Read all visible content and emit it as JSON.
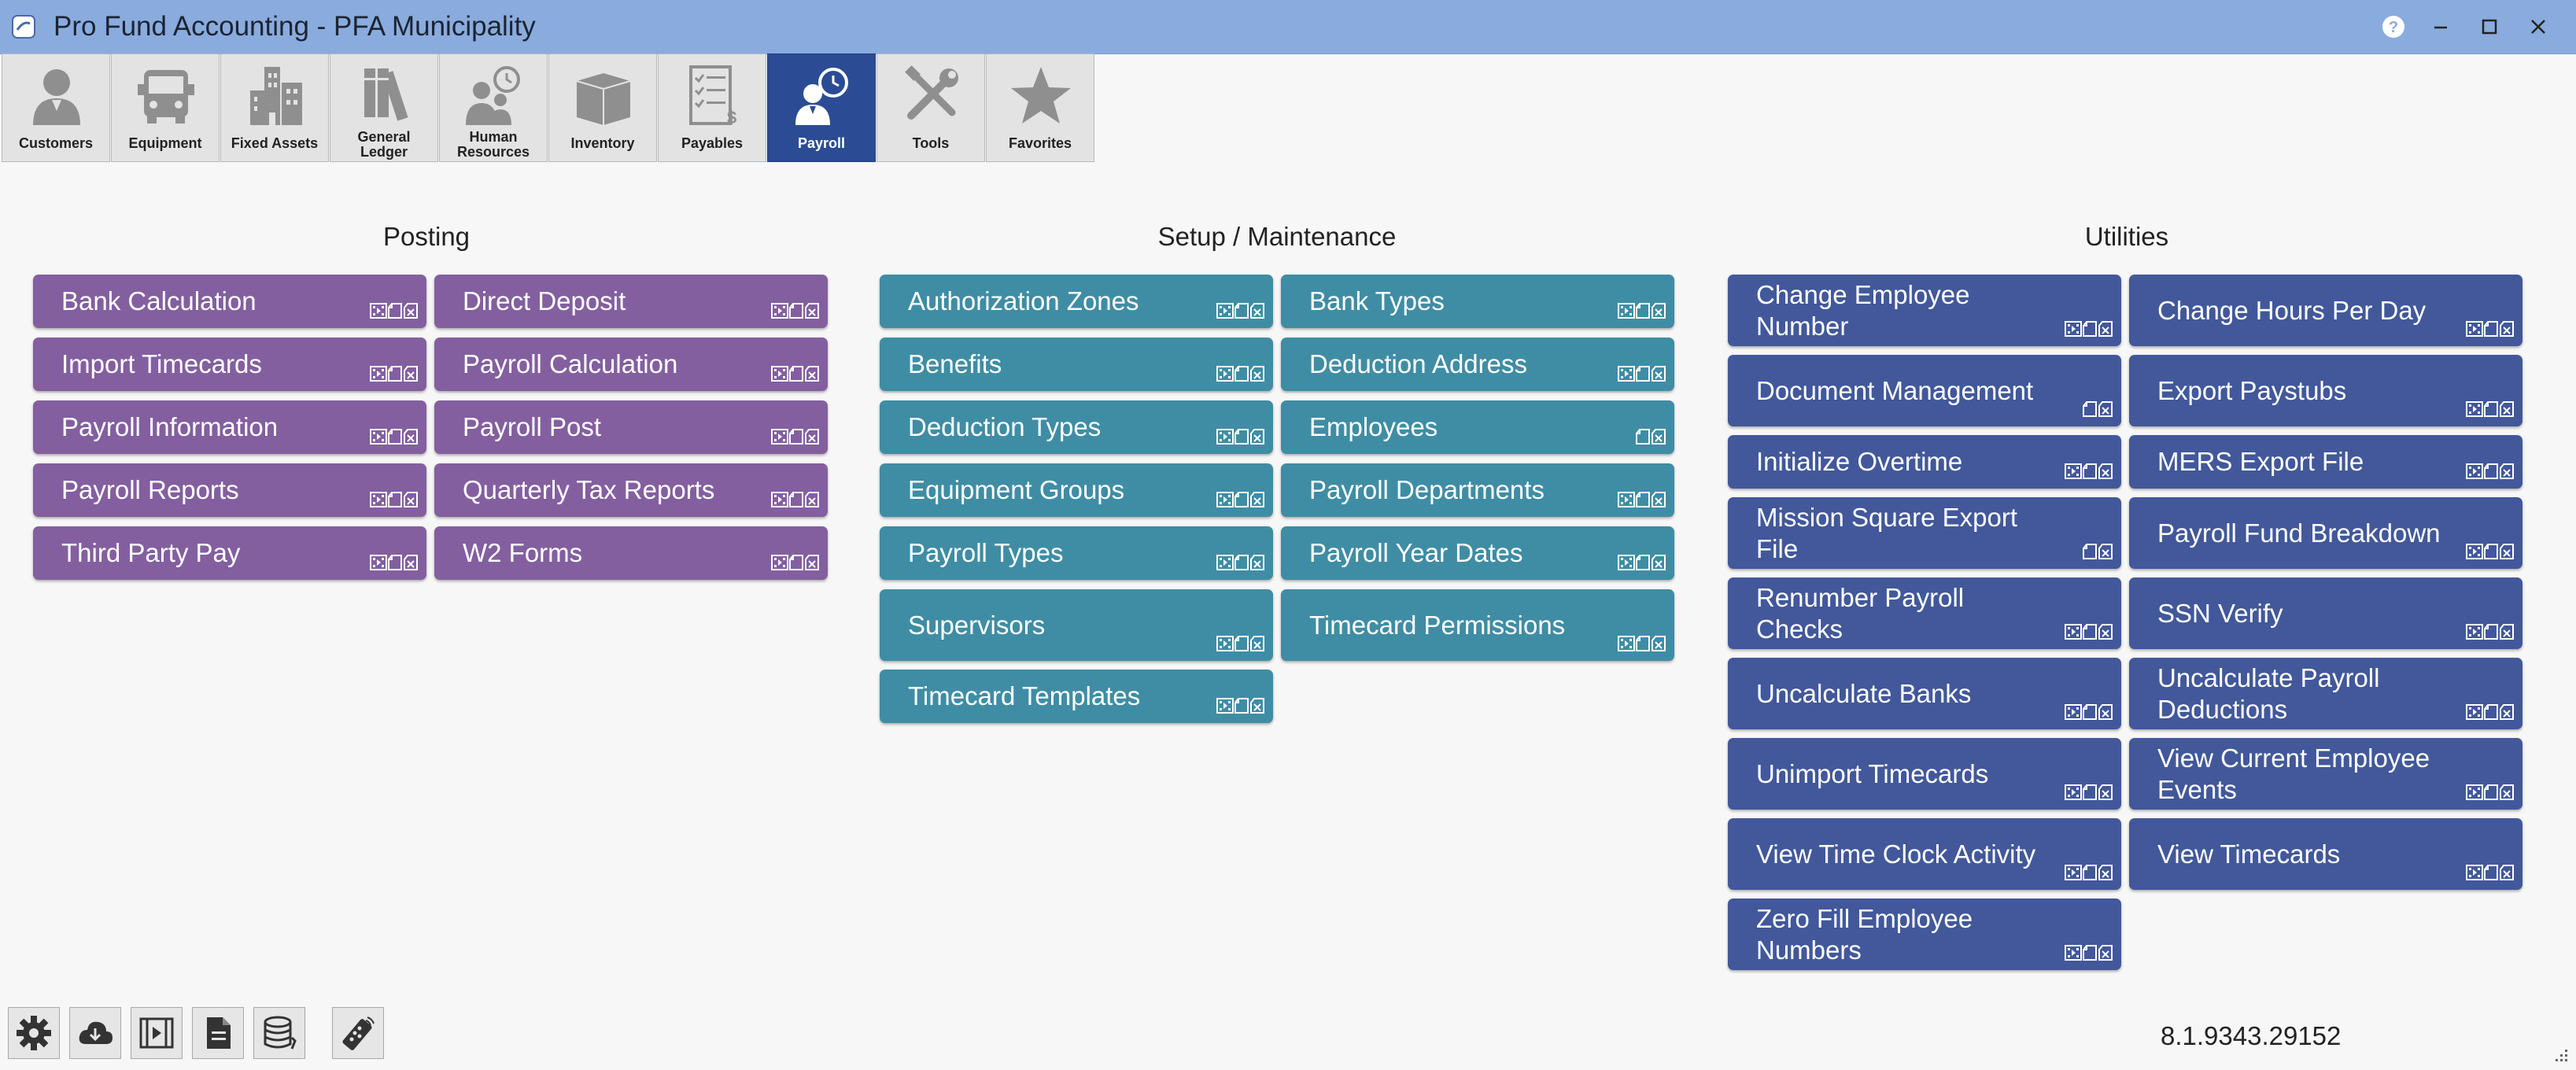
{
  "window": {
    "title": "Pro Fund Accounting - PFA Municipality",
    "help_icon": "question-circle-icon"
  },
  "modules": [
    {
      "id": "customers",
      "label": "Customers",
      "icon": "customers-icon"
    },
    {
      "id": "equipment",
      "label": "Equipment",
      "icon": "truck-icon"
    },
    {
      "id": "fixed-assets",
      "label": "Fixed Assets",
      "icon": "buildings-icon"
    },
    {
      "id": "general-ledger",
      "label": "General Ledger",
      "label_lines": [
        "General",
        "Ledger"
      ],
      "icon": "ledger-books-icon"
    },
    {
      "id": "human-resources",
      "label": "Human Resources",
      "label_lines": [
        "Human",
        "Resources"
      ],
      "icon": "people-clock-icon"
    },
    {
      "id": "inventory",
      "label": "Inventory",
      "icon": "box-icon"
    },
    {
      "id": "payables",
      "label": "Payables",
      "icon": "checklist-icon"
    },
    {
      "id": "payroll",
      "label": "Payroll",
      "icon": "person-clock-icon",
      "active": true
    },
    {
      "id": "tools",
      "label": "Tools",
      "icon": "tools-icon"
    },
    {
      "id": "favorites",
      "label": "Favorites",
      "icon": "star-icon"
    }
  ],
  "sections": {
    "posting": {
      "title": "Posting",
      "tiles": [
        {
          "label": "Bank Calculation"
        },
        {
          "label": "Direct Deposit"
        },
        {
          "label": "Import Timecards"
        },
        {
          "label": "Payroll Calculation"
        },
        {
          "label": "Payroll Information"
        },
        {
          "label": "Payroll Post"
        },
        {
          "label": "Payroll Reports"
        },
        {
          "label": "Quarterly Tax Reports"
        },
        {
          "label": "Third Party Pay"
        },
        {
          "label": "W2 Forms"
        }
      ]
    },
    "setup": {
      "title": "Setup / Maintenance",
      "tiles": [
        {
          "label": "Authorization Zones"
        },
        {
          "label": "Bank Types"
        },
        {
          "label": "Benefits"
        },
        {
          "label": "Deduction Address"
        },
        {
          "label": "Deduction Types"
        },
        {
          "label": "Employees"
        },
        {
          "label": "Equipment Groups"
        },
        {
          "label": "Payroll Departments"
        },
        {
          "label": "Payroll Types"
        },
        {
          "label": "Payroll Year Dates"
        },
        {
          "label": "Supervisors"
        },
        {
          "label": "Timecard Permissions"
        },
        {
          "label": "Timecard Templates"
        }
      ]
    },
    "utilities": {
      "title": "Utilities",
      "tiles": [
        {
          "label": "Change Employee Number"
        },
        {
          "label": "Change Hours Per Day"
        },
        {
          "label": "Document Management"
        },
        {
          "label": "Export Paystubs"
        },
        {
          "label": "Initialize Overtime"
        },
        {
          "label": "MERS Export File"
        },
        {
          "label": "Mission Square Export File"
        },
        {
          "label": "Payroll Fund Breakdown"
        },
        {
          "label": "Renumber Payroll Checks"
        },
        {
          "label": "SSN Verify"
        },
        {
          "label": "Uncalculate Banks"
        },
        {
          "label": "Uncalculate Payroll Deductions"
        },
        {
          "label": "Unimport Timecards"
        },
        {
          "label": "View Current Employee Events"
        },
        {
          "label": "View Time Clock Activity"
        },
        {
          "label": "View Timecards"
        },
        {
          "label": "Zero Fill Employee Numbers"
        }
      ]
    }
  },
  "tile_icons": [
    "video-icon",
    "document-icon",
    "tag-icon"
  ],
  "colors": {
    "posting": "#835f9f",
    "setup": "#3f8da4",
    "utilities": "#42589a",
    "active_module": "#2b4c94",
    "titlebar": "#8aabdd"
  },
  "bottom_toolbar": [
    {
      "id": "settings",
      "icon": "gear-icon"
    },
    {
      "id": "download",
      "icon": "cloud-download-icon"
    },
    {
      "id": "video",
      "icon": "film-icon"
    },
    {
      "id": "document",
      "icon": "document-icon"
    },
    {
      "id": "database",
      "icon": "database-icon"
    },
    {
      "id": "remote",
      "icon": "remote-control-icon"
    }
  ],
  "status": {
    "version": "8.1.9343.29152"
  }
}
